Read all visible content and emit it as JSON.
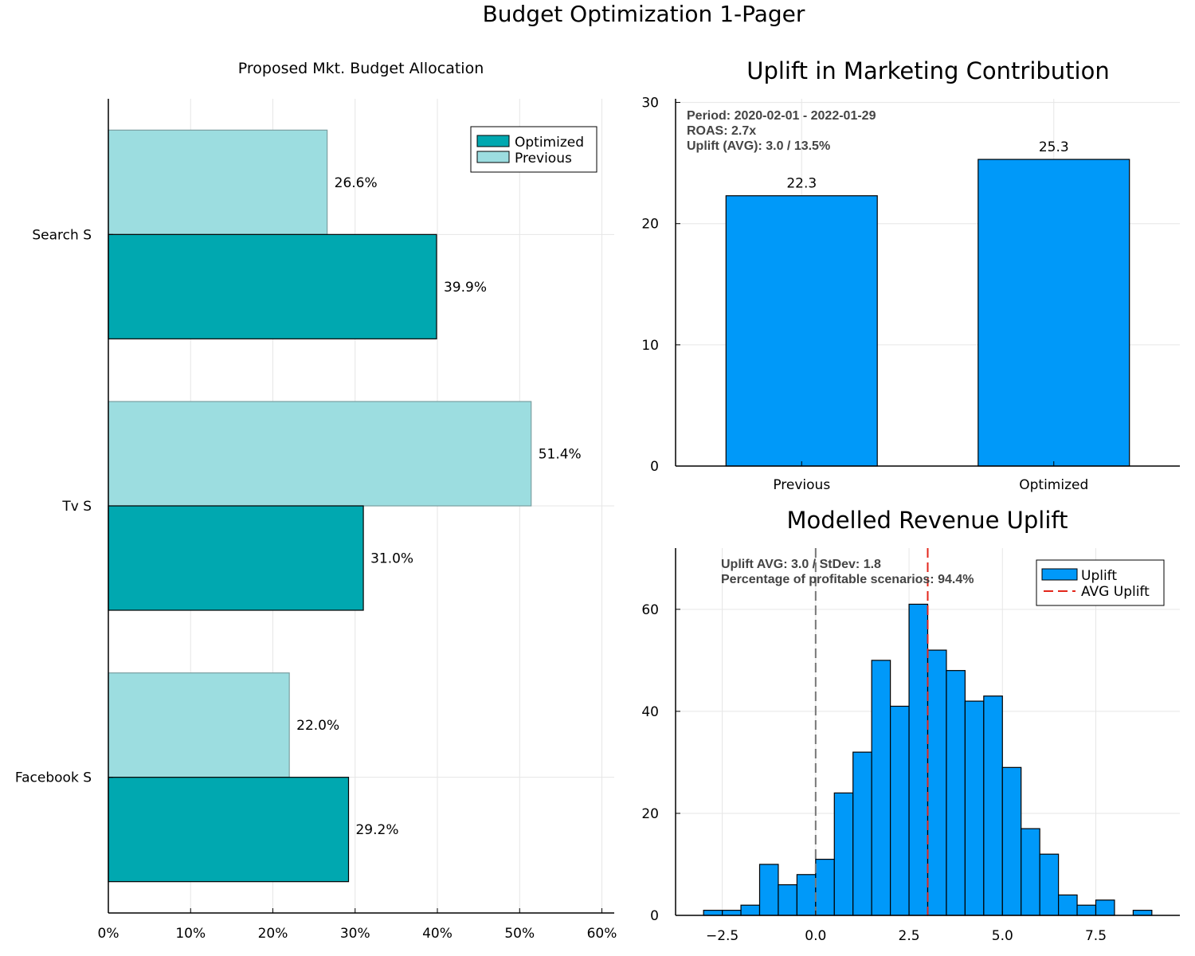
{
  "title": "Budget Optimization 1-Pager",
  "colors": {
    "optimized": "#00a8b0",
    "previous": "#9cdde0",
    "bar": "#0099f9",
    "avg_line": "#e3261b",
    "zero_line": "#777777",
    "grid": "#e6e6e6"
  },
  "chart_data": [
    {
      "type": "bar",
      "orientation": "horizontal",
      "title": "Proposed Mkt. Budget Allocation",
      "categories": [
        "Search S",
        "Tv S",
        "Facebook S"
      ],
      "series": [
        {
          "name": "Optimized",
          "values": [
            39.9,
            31.0,
            29.2
          ],
          "labels": [
            "39.9%",
            "31.0%",
            "29.2%"
          ]
        },
        {
          "name": "Previous",
          "values": [
            26.6,
            51.4,
            22.0
          ],
          "labels": [
            "26.6%",
            "51.4%",
            "22.0%"
          ]
        }
      ],
      "xlim": [
        0,
        61.5
      ],
      "xticks": [
        0,
        10,
        20,
        30,
        40,
        50,
        60
      ],
      "xtick_labels": [
        "0%",
        "10%",
        "20%",
        "30%",
        "40%",
        "50%",
        "60%"
      ],
      "grid": true,
      "legend": "top-right"
    },
    {
      "type": "bar",
      "title": "Uplift in Marketing Contribution",
      "categories": [
        "Previous",
        "Optimized"
      ],
      "values": [
        22.3,
        25.3
      ],
      "value_labels": [
        "22.3",
        "25.3"
      ],
      "ylim": [
        0,
        30.3
      ],
      "yticks": [
        0,
        10,
        20,
        30
      ],
      "ytick_labels": [
        "0",
        "10",
        "20",
        "30"
      ],
      "grid": true,
      "annotations": [
        "Period: 2020-02-01 - 2022-01-29",
        "ROAS: 2.7x",
        "Uplift (AVG): 3.0 / 13.5%"
      ]
    },
    {
      "type": "histogram",
      "title": "Modelled Revenue Uplift",
      "bin_width": 0.5,
      "bin_start": -3.0,
      "counts": [
        1,
        1,
        2,
        10,
        6,
        8,
        11,
        24,
        32,
        50,
        41,
        61,
        52,
        48,
        42,
        43,
        29,
        17,
        12,
        4,
        2,
        3,
        0,
        1
      ],
      "xlim": [
        -3.75,
        9.75
      ],
      "ylim": [
        0,
        72
      ],
      "xticks": [
        -2.5,
        0.0,
        2.5,
        5.0,
        7.5
      ],
      "xtick_labels": [
        "−2.5",
        "0.0",
        "2.5",
        "5.0",
        "7.5"
      ],
      "yticks": [
        0,
        20,
        40,
        60
      ],
      "ytick_labels": [
        "0",
        "20",
        "40",
        "60"
      ],
      "zero_line": 0.0,
      "avg_line": 3.0,
      "legend": [
        "Uplift",
        "AVG Uplift"
      ],
      "legend_position": "top-right",
      "grid": true,
      "annotations": [
        "Uplift AVG: 3.0 / StDev: 1.8",
        "Percentage of profitable scenarios: 94.4%"
      ]
    }
  ]
}
